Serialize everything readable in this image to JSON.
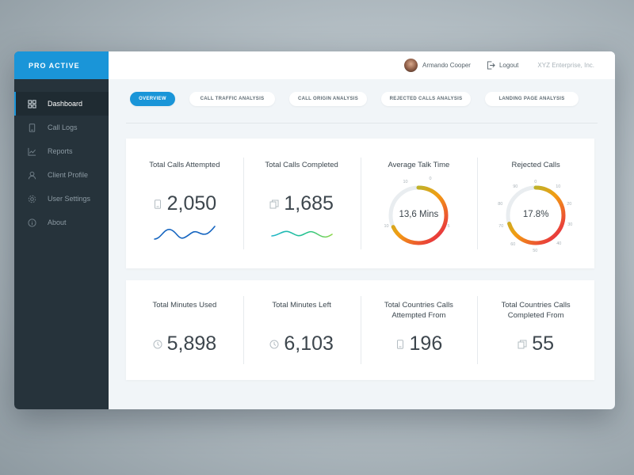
{
  "brand": "PRO ACTIVE",
  "sidebar": {
    "items": [
      {
        "label": "Dashboard",
        "icon": "grid-icon"
      },
      {
        "label": "Call Logs",
        "icon": "phone-icon"
      },
      {
        "label": "Reports",
        "icon": "chart-icon"
      },
      {
        "label": "Client Profile",
        "icon": "user-icon"
      },
      {
        "label": "User Settings",
        "icon": "gear-icon"
      },
      {
        "label": "About",
        "icon": "info-icon"
      }
    ]
  },
  "header": {
    "user_name": "Armando Cooper",
    "logout_label": "Logout",
    "company": "XYZ Enterprise, Inc."
  },
  "tabs": [
    {
      "label": "OVERVIEW"
    },
    {
      "label": "CALL TRAFFIC ANALYSIS"
    },
    {
      "label": "CALL ORIGIN ANALYSIS"
    },
    {
      "label": "REJECTED CALLS ANALYSIS"
    },
    {
      "label": "LANDING PAGE ANALYSIS"
    }
  ],
  "stats_top": [
    {
      "title": "Total Calls Attempted",
      "value": "2,050"
    },
    {
      "title": "Total Calls Completed",
      "value": "1,685"
    },
    {
      "title": "Average Talk Time",
      "value": "13,6 Mins",
      "fraction": 0.68,
      "ticks": [
        "0",
        "5",
        "10"
      ]
    },
    {
      "title": "Rejected Calls",
      "value": "17.8%",
      "fraction": 0.7,
      "ticks": [
        "0",
        "10",
        "20",
        "30",
        "40",
        "50",
        "60",
        "70",
        "80",
        "90"
      ]
    }
  ],
  "stats_bottom": [
    {
      "title": "Total Minutes Used",
      "value": "5,898"
    },
    {
      "title": "Total Minutes Left",
      "value": "6,103"
    },
    {
      "title": "Total Countries Calls Attempted From",
      "value": "196"
    },
    {
      "title": "Total Countries Calls Completed From",
      "value": "55"
    }
  ],
  "colors": {
    "accent": "#1a95d8",
    "sidebar": "#26333b",
    "spark_blue": "#1565c0",
    "spark_green": "#24c38a",
    "gauge_start": "#e5174b",
    "gauge_mid": "#f39c12",
    "gauge_end": "#8dc63f"
  }
}
